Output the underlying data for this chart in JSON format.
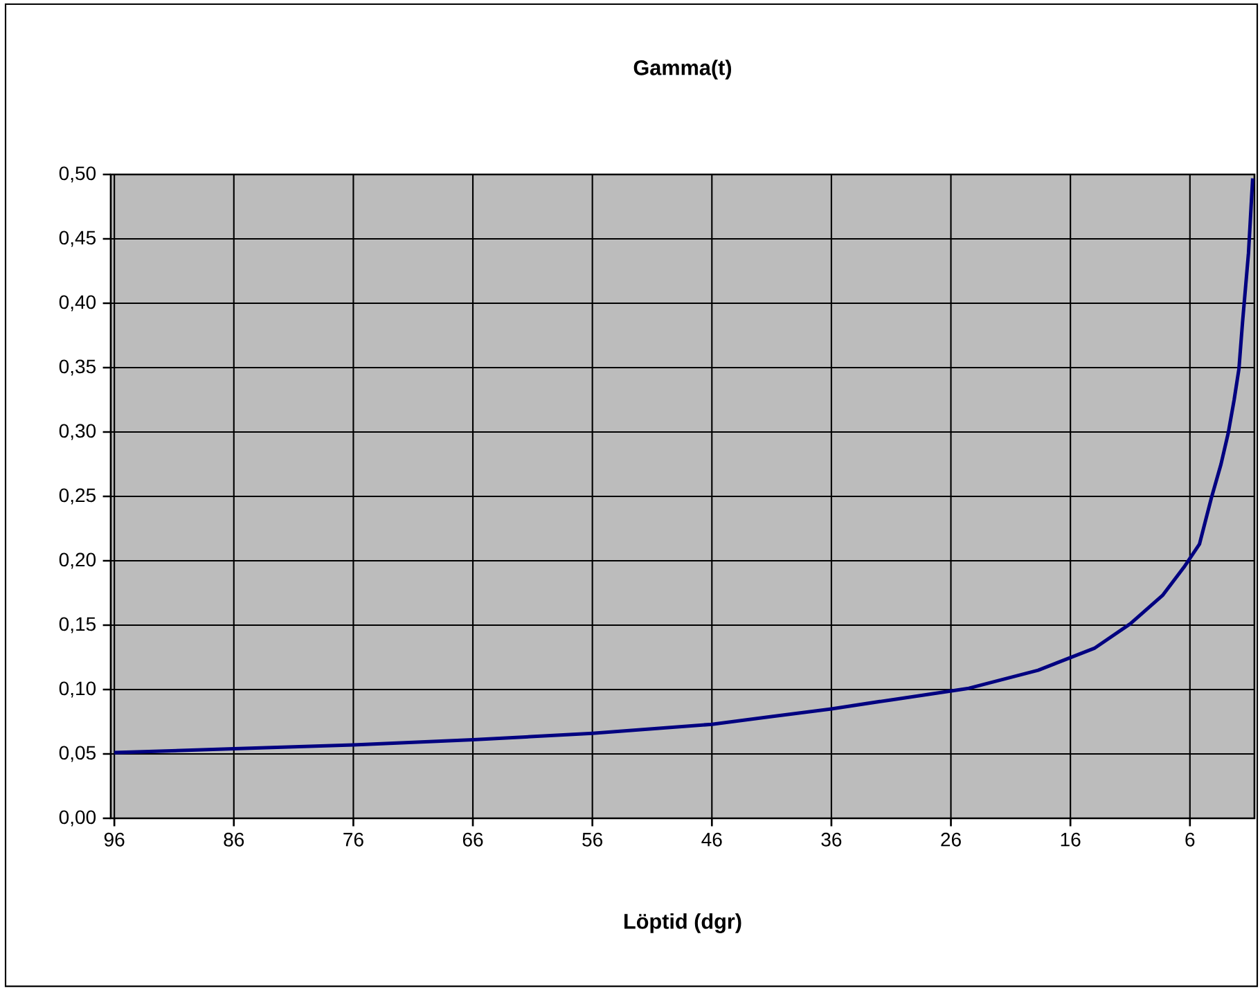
{
  "chart_data": {
    "type": "line",
    "title": "Gamma(t)",
    "xlabel": "Löptid (dgr)",
    "x": [
      96,
      86,
      76,
      66,
      56,
      46,
      41,
      36,
      31,
      24.5,
      18.7,
      14,
      11,
      8.3,
      6.5,
      5.2,
      4.2,
      3.4,
      2.8,
      2.3,
      1.9,
      1.6,
      1.1,
      0.75
    ],
    "series": [
      {
        "color": "#000080",
        "values": [
          0.051,
          0.054,
          0.057,
          0.061,
          0.066,
          0.073,
          0.079,
          0.085,
          0.092,
          0.101,
          0.115,
          0.132,
          0.151,
          0.173,
          0.195,
          0.213,
          0.249,
          0.275,
          0.299,
          0.325,
          0.349,
          0.385,
          0.439,
          0.497
        ]
      }
    ],
    "xlim": [
      96.3,
      0.6
    ],
    "xticks": [
      96,
      86,
      76,
      66,
      56,
      46,
      36,
      26,
      16,
      6
    ],
    "ylim": [
      0,
      0.5
    ],
    "yticks": [
      {
        "value": 0,
        "label": "0,00"
      },
      {
        "value": 0.05,
        "label": "0,05"
      },
      {
        "value": 0.1,
        "label": "0,10"
      },
      {
        "value": 0.15,
        "label": "0,15"
      },
      {
        "value": 0.2,
        "label": "0,20"
      },
      {
        "value": 0.25,
        "label": "0,25"
      },
      {
        "value": 0.3,
        "label": "0,30"
      },
      {
        "value": 0.35,
        "label": "0,35"
      },
      {
        "value": 0.4,
        "label": "0,40"
      },
      {
        "value": 0.45,
        "label": "0,45"
      },
      {
        "value": 0.5,
        "label": "0,50"
      }
    ],
    "grid": true,
    "marker": "none",
    "line_style": "solid"
  }
}
